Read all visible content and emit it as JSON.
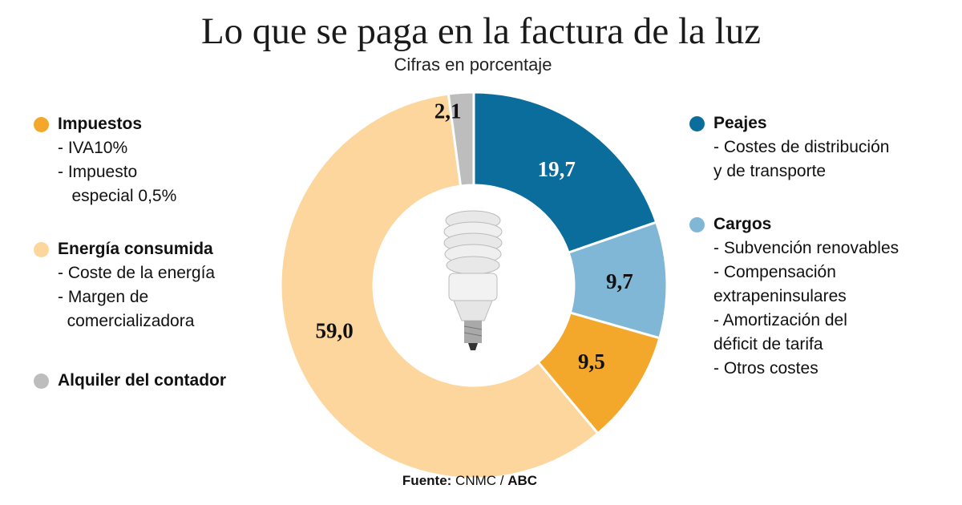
{
  "title": "Lo que se paga en la factura de la luz",
  "subtitle": "Cifras en porcentaje",
  "source": {
    "label": "Fuente:",
    "text": "CNMC /",
    "brand": "ABC"
  },
  "chart_data": {
    "type": "pie",
    "variant": "donut",
    "title": "Lo que se paga en la factura de la luz",
    "subtitle": "Cifras en porcentaje",
    "start": "top",
    "direction": "clockwise",
    "categories": [
      "Peajes",
      "Cargos",
      "Impuestos",
      "Energía consumida",
      "Alquiler del contador"
    ],
    "values": [
      19.7,
      9.7,
      9.5,
      59.0,
      2.1
    ],
    "data_labels": [
      "19,7",
      "9,7",
      "9,5",
      "59,0",
      "2,1"
    ],
    "colors": [
      "#0b6d9c",
      "#80b6d6",
      "#f3a72b",
      "#fcd69d",
      "#bdbdbd"
    ],
    "center_image": "light-bulb"
  },
  "legend": {
    "left": [
      {
        "name": "Impuestos",
        "color": "#f3a72b",
        "items": [
          "- IVA10%",
          "- Impuesto",
          "   especial 0,5%"
        ]
      },
      {
        "name": "Energía consumida",
        "color": "#fcd69d",
        "items": [
          "- Coste de la energía",
          "- Margen de",
          "  comercializadora"
        ]
      },
      {
        "name": "Alquiler del contador",
        "color": "#bdbdbd",
        "items": []
      }
    ],
    "right": [
      {
        "name": "Peajes",
        "color": "#0b6d9c",
        "items": [
          "- Costes de distribución",
          "y de transporte"
        ]
      },
      {
        "name": "Cargos",
        "color": "#80b6d6",
        "items": [
          "- Subvención renovables",
          "- Compensación",
          "extrapeninsulares",
          "- Amortización del",
          "déficit de tarifa",
          "- Otros costes"
        ]
      }
    ]
  }
}
